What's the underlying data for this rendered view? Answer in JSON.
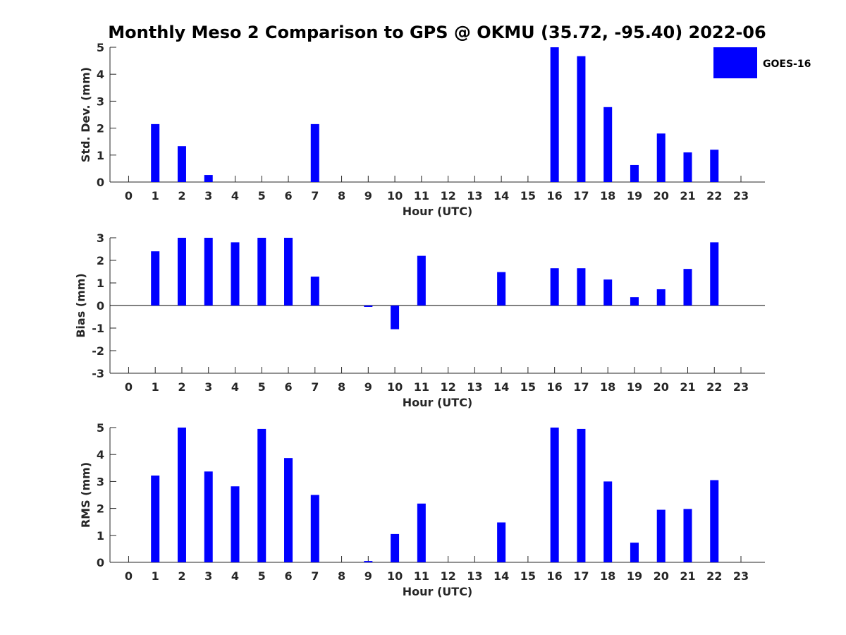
{
  "figure": {
    "title": "Monthly Meso 2 Comparison to GPS @ OKMU (35.72, -95.40) 2022-06"
  },
  "legend": {
    "label": "GOES-16",
    "color": "#0000ff",
    "placement": "top-right"
  },
  "chart_data": [
    {
      "type": "bar",
      "name": "std-dev",
      "xlabel": "Hour (UTC)",
      "ylabel": "Std. Dev. (mm)",
      "xlim": [
        -0.7,
        23.9
      ],
      "ylim": [
        0,
        5
      ],
      "yticks": [
        0,
        1,
        2,
        3,
        4,
        5
      ],
      "categories": [
        "0",
        "1",
        "2",
        "3",
        "4",
        "5",
        "6",
        "7",
        "8",
        "9",
        "10",
        "11",
        "12",
        "13",
        "14",
        "15",
        "16",
        "17",
        "18",
        "19",
        "20",
        "21",
        "22",
        "23"
      ],
      "series": [
        {
          "name": "GOES-16",
          "color": "#0000ff",
          "values": [
            0,
            2.15,
            1.33,
            0.26,
            0,
            0,
            0,
            2.15,
            0,
            0,
            0,
            0,
            0,
            0,
            0,
            0,
            5.0,
            4.67,
            2.78,
            0.63,
            1.8,
            1.1,
            1.2,
            0
          ]
        }
      ]
    },
    {
      "type": "bar",
      "name": "bias",
      "xlabel": "Hour (UTC)",
      "ylabel": "Bias (mm)",
      "xlim": [
        -0.7,
        23.9
      ],
      "ylim": [
        -3,
        3
      ],
      "yticks": [
        -3,
        -2,
        -1,
        0,
        1,
        2,
        3
      ],
      "zero_line": true,
      "categories": [
        "0",
        "1",
        "2",
        "3",
        "4",
        "5",
        "6",
        "7",
        "8",
        "9",
        "10",
        "11",
        "12",
        "13",
        "14",
        "15",
        "16",
        "17",
        "18",
        "19",
        "20",
        "21",
        "22",
        "23"
      ],
      "series": [
        {
          "name": "GOES-16",
          "color": "#0000ff",
          "values": [
            0,
            2.4,
            3.0,
            3.0,
            2.8,
            3.0,
            3.0,
            1.28,
            0,
            -0.05,
            -1.05,
            2.2,
            0,
            0,
            1.48,
            0,
            1.65,
            1.65,
            1.15,
            0.37,
            0.72,
            1.62,
            2.8,
            0
          ]
        }
      ]
    },
    {
      "type": "bar",
      "name": "rms",
      "xlabel": "Hour (UTC)",
      "ylabel": "RMS (mm)",
      "xlim": [
        -0.7,
        23.9
      ],
      "ylim": [
        0,
        5
      ],
      "yticks": [
        0,
        1,
        2,
        3,
        4,
        5
      ],
      "categories": [
        "0",
        "1",
        "2",
        "3",
        "4",
        "5",
        "6",
        "7",
        "8",
        "9",
        "10",
        "11",
        "12",
        "13",
        "14",
        "15",
        "16",
        "17",
        "18",
        "19",
        "20",
        "21",
        "22",
        "23"
      ],
      "series": [
        {
          "name": "GOES-16",
          "color": "#0000ff",
          "values": [
            0,
            3.22,
            5.0,
            3.37,
            2.82,
            4.95,
            3.87,
            2.5,
            0,
            0.05,
            1.05,
            2.18,
            0,
            0,
            1.48,
            0,
            5.0,
            4.95,
            3.0,
            0.73,
            1.95,
            1.98,
            3.05,
            0
          ]
        }
      ]
    }
  ]
}
